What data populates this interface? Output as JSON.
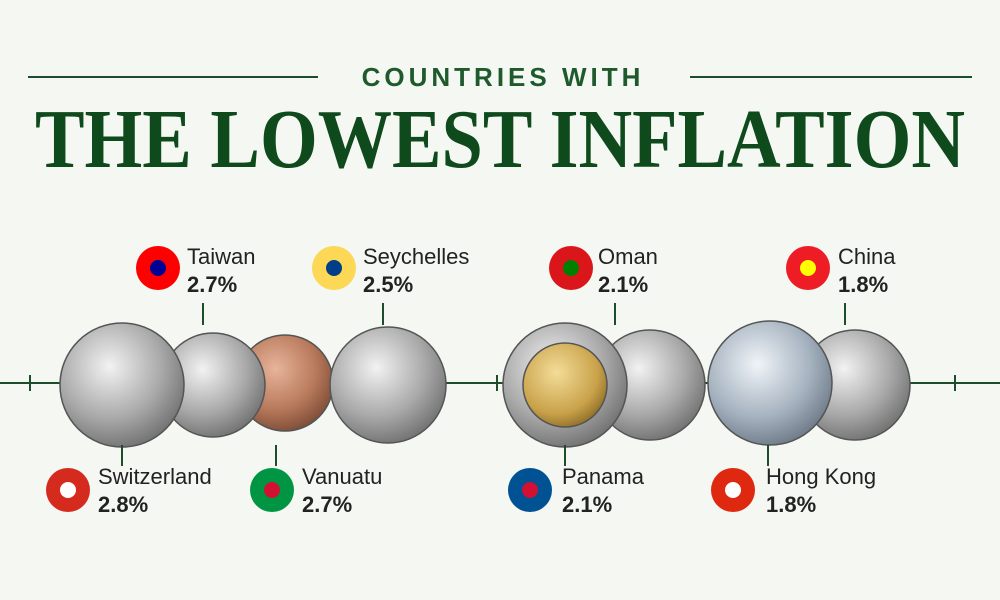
{
  "header": {
    "kicker": "COUNTRIES WITH",
    "title": "THE LOWEST INFLATION"
  },
  "countries": [
    {
      "name": "Switzerland",
      "value": "2.8%"
    },
    {
      "name": "Taiwan",
      "value": "2.7%"
    },
    {
      "name": "Vanuatu",
      "value": "2.7%"
    },
    {
      "name": "Seychelles",
      "value": "2.5%"
    },
    {
      "name": "Oman",
      "value": "2.1%"
    },
    {
      "name": "Panama",
      "value": "2.1%"
    },
    {
      "name": "China",
      "value": "1.8%"
    },
    {
      "name": "Hong Kong",
      "value": "1.8%"
    }
  ]
}
